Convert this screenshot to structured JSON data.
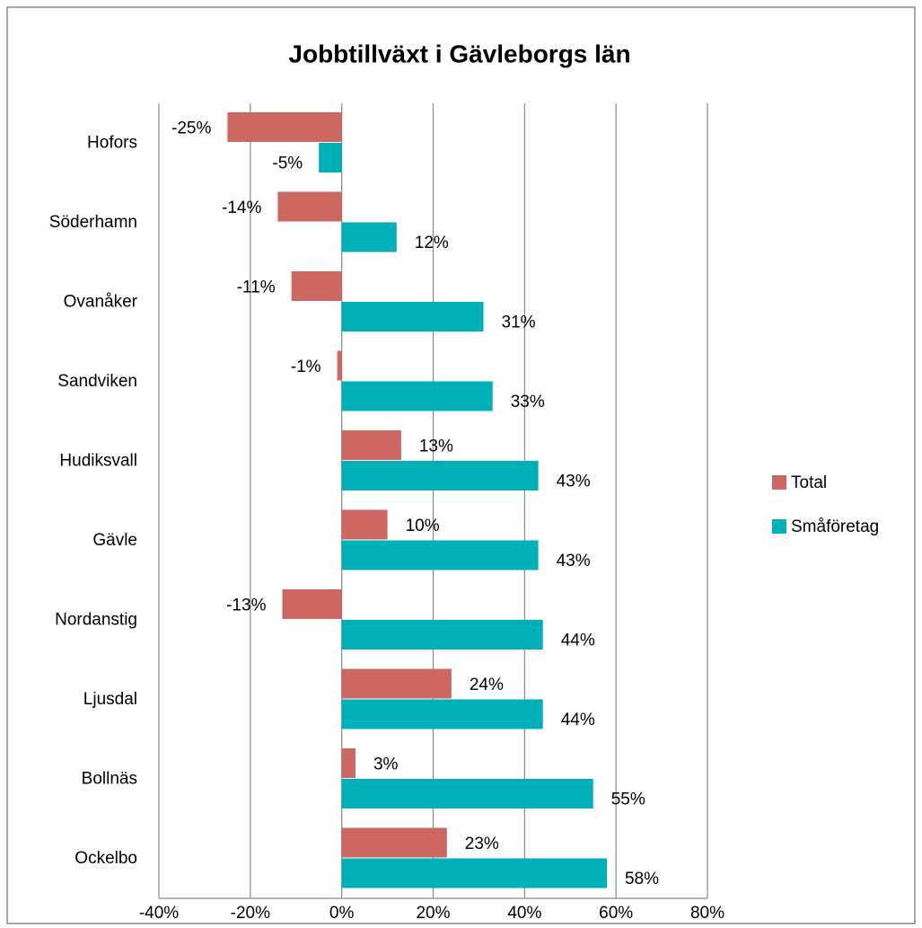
{
  "chart_data": {
    "type": "hbar",
    "title": "Jobbtillväxt i Gävleborgs län",
    "categories": [
      "Hofors",
      "Söderhamn",
      "Ovanåker",
      "Sandviken",
      "Hudiksvall",
      "Gävle",
      "Nordanstig",
      "Ljusdal",
      "Bollnäs",
      "Ockelbo"
    ],
    "series": [
      {
        "name": "Total",
        "color": "#cd6762",
        "values": [
          -25,
          -14,
          -11,
          -1,
          13,
          10,
          -13,
          24,
          3,
          23
        ],
        "value_labels": [
          "-25%",
          "-14%",
          "-11%",
          "-1%",
          "13%",
          "10%",
          "-13%",
          "24%",
          "3%",
          "23%"
        ]
      },
      {
        "name": "Småföretag",
        "color": "#00b0b8",
        "values": [
          -5,
          12,
          31,
          33,
          43,
          43,
          44,
          44,
          55,
          58
        ],
        "value_labels": [
          "-5%",
          "12%",
          "31%",
          "33%",
          "43%",
          "43%",
          "44%",
          "44%",
          "55%",
          "58%"
        ]
      }
    ],
    "xlim": [
      -40,
      80
    ],
    "xticks": [
      {
        "value": -40,
        "label": "-40%"
      },
      {
        "value": -20,
        "label": "-20%"
      },
      {
        "value": 0,
        "label": "0%"
      },
      {
        "value": 20,
        "label": "20%"
      },
      {
        "value": 40,
        "label": "40%"
      },
      {
        "value": 60,
        "label": "60%"
      },
      {
        "value": 80,
        "label": "80%"
      }
    ],
    "grid": true,
    "legend": "right"
  }
}
